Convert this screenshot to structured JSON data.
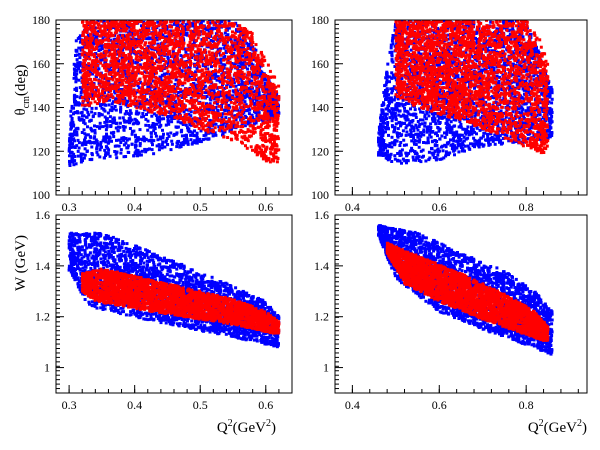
{
  "chart_data": [
    {
      "type": "scatter",
      "panel": "top-left",
      "xlim": [
        0.28,
        0.64
      ],
      "ylim": [
        100,
        180
      ],
      "xticks": [
        0.3,
        0.4,
        0.5,
        0.6
      ],
      "xtick_labels": [
        "0.3",
        "0.4",
        "0.5",
        "0.6"
      ],
      "yticks": [
        100,
        120,
        140,
        160,
        180
      ],
      "ytick_labels": [
        "100",
        "120",
        "140",
        "160",
        "180"
      ],
      "ylabel": {
        "main": "θ",
        "sub": "cm",
        "tail": "(deg)"
      },
      "series": [
        {
          "name": "blue",
          "color": "#0000ff",
          "region": {
            "x": [
              0.3,
              0.62
            ],
            "y_lower": [
              [
                0.3,
                113
              ],
              [
                0.33,
                116
              ],
              [
                0.42,
                118
              ],
              [
                0.5,
                124
              ],
              [
                0.56,
                130
              ],
              [
                0.62,
                136
              ]
            ],
            "y_upper": [
              [
                0.3,
                128
              ],
              [
                0.31,
                170
              ],
              [
                0.33,
                180
              ],
              [
                0.55,
                180
              ],
              [
                0.58,
                170
              ],
              [
                0.6,
                155
              ],
              [
                0.62,
                145
              ]
            ]
          }
        },
        {
          "name": "red",
          "color": "#ff0000",
          "region": {
            "x": [
              0.32,
              0.62
            ],
            "y_lower": [
              [
                0.32,
                140
              ],
              [
                0.36,
                143
              ],
              [
                0.45,
                136
              ],
              [
                0.5,
                130
              ],
              [
                0.56,
                124
              ],
              [
                0.6,
                115
              ],
              [
                0.62,
                115
              ]
            ],
            "y_upper": [
              [
                0.32,
                180
              ],
              [
                0.55,
                180
              ],
              [
                0.58,
                174
              ],
              [
                0.6,
                162
              ],
              [
                0.62,
                150
              ]
            ]
          }
        }
      ]
    },
    {
      "type": "scatter",
      "panel": "top-right",
      "xlim": [
        0.36,
        0.94
      ],
      "ylim": [
        100,
        180
      ],
      "xticks": [
        0.4,
        0.6,
        0.8
      ],
      "xtick_labels": [
        "0.4",
        "0.6",
        "0.8"
      ],
      "yticks": [
        100,
        120,
        140,
        160,
        180
      ],
      "ytick_labels": [
        "100",
        "120",
        "140",
        "160",
        "180"
      ],
      "series": [
        {
          "name": "blue",
          "color": "#0000ff",
          "region": {
            "x": [
              0.46,
              0.86
            ],
            "y_lower": [
              [
                0.46,
                118
              ],
              [
                0.5,
                114
              ],
              [
                0.6,
                116
              ],
              [
                0.7,
                122
              ],
              [
                0.8,
                124
              ],
              [
                0.86,
                126
              ]
            ],
            "y_upper": [
              [
                0.46,
                128
              ],
              [
                0.48,
                160
              ],
              [
                0.5,
                180
              ],
              [
                0.8,
                180
              ],
              [
                0.83,
                165
              ],
              [
                0.86,
                148
              ]
            ]
          }
        },
        {
          "name": "red",
          "color": "#ff0000",
          "region": {
            "x": [
              0.5,
              0.85
            ],
            "y_lower": [
              [
                0.5,
                145
              ],
              [
                0.55,
                140
              ],
              [
                0.65,
                134
              ],
              [
                0.75,
                126
              ],
              [
                0.85,
                118
              ]
            ],
            "y_upper": [
              [
                0.5,
                180
              ],
              [
                0.8,
                180
              ],
              [
                0.83,
                172
              ],
              [
                0.85,
                160
              ]
            ]
          }
        }
      ]
    },
    {
      "type": "scatter",
      "panel": "bottom-left",
      "xlim": [
        0.28,
        0.64
      ],
      "ylim": [
        0.9,
        1.6
      ],
      "xticks": [
        0.3,
        0.4,
        0.5,
        0.6
      ],
      "xtick_labels": [
        "0.3",
        "0.4",
        "0.5",
        "0.6"
      ],
      "yticks": [
        1.0,
        1.2,
        1.4,
        1.6
      ],
      "ytick_labels": [
        "1",
        "1.2",
        "1.4",
        "1.6"
      ],
      "ylabel": {
        "main": "W (GeV)"
      },
      "xlabel": {
        "main": "Q",
        "sup": "2",
        "mid": "(GeV",
        "sup2": "2",
        "tail": ")"
      },
      "series": [
        {
          "name": "blue",
          "color": "#0000ff",
          "region": {
            "x": [
              0.3,
              0.62
            ],
            "y_lower": [
              [
                0.3,
                1.38
              ],
              [
                0.33,
                1.24
              ],
              [
                0.45,
                1.17
              ],
              [
                0.55,
                1.12
              ],
              [
                0.62,
                1.08
              ]
            ],
            "y_upper": [
              [
                0.3,
                1.53
              ],
              [
                0.35,
                1.53
              ],
              [
                0.45,
                1.43
              ],
              [
                0.55,
                1.32
              ],
              [
                0.6,
                1.26
              ],
              [
                0.62,
                1.2
              ]
            ]
          }
        },
        {
          "name": "red",
          "color": "#ff0000",
          "region": {
            "x": [
              0.32,
              0.62
            ],
            "y_lower": [
              [
                0.32,
                1.3
              ],
              [
                0.34,
                1.26
              ],
              [
                0.45,
                1.21
              ],
              [
                0.55,
                1.17
              ],
              [
                0.62,
                1.13
              ]
            ],
            "y_upper": [
              [
                0.32,
                1.37
              ],
              [
                0.35,
                1.39
              ],
              [
                0.45,
                1.33
              ],
              [
                0.55,
                1.27
              ],
              [
                0.6,
                1.22
              ],
              [
                0.62,
                1.18
              ]
            ]
          }
        }
      ]
    },
    {
      "type": "scatter",
      "panel": "bottom-right",
      "xlim": [
        0.36,
        0.94
      ],
      "ylim": [
        0.9,
        1.6
      ],
      "xticks": [
        0.4,
        0.6,
        0.8
      ],
      "xtick_labels": [
        "0.4",
        "0.6",
        "0.8"
      ],
      "yticks": [
        1.0,
        1.2,
        1.4,
        1.6
      ],
      "ytick_labels": [
        "1",
        "1.2",
        "1.4",
        "1.6"
      ],
      "xlabel": {
        "main": "Q",
        "sup": "2",
        "mid": "(GeV",
        "sup2": "2",
        "tail": ")"
      },
      "series": [
        {
          "name": "blue",
          "color": "#0000ff",
          "region": {
            "x": [
              0.46,
              0.86
            ],
            "y_lower": [
              [
                0.46,
                1.52
              ],
              [
                0.5,
                1.35
              ],
              [
                0.6,
                1.22
              ],
              [
                0.7,
                1.15
              ],
              [
                0.8,
                1.09
              ],
              [
                0.86,
                1.05
              ]
            ],
            "y_upper": [
              [
                0.46,
                1.56
              ],
              [
                0.55,
                1.53
              ],
              [
                0.65,
                1.45
              ],
              [
                0.75,
                1.38
              ],
              [
                0.82,
                1.3
              ],
              [
                0.86,
                1.22
              ]
            ]
          }
        },
        {
          "name": "red",
          "color": "#ff0000",
          "region": {
            "x": [
              0.48,
              0.85
            ],
            "y_lower": [
              [
                0.48,
                1.45
              ],
              [
                0.52,
                1.33
              ],
              [
                0.6,
                1.26
              ],
              [
                0.7,
                1.19
              ],
              [
                0.8,
                1.13
              ],
              [
                0.85,
                1.1
              ]
            ],
            "y_upper": [
              [
                0.48,
                1.49
              ],
              [
                0.55,
                1.44
              ],
              [
                0.65,
                1.37
              ],
              [
                0.75,
                1.29
              ],
              [
                0.82,
                1.22
              ],
              [
                0.85,
                1.16
              ]
            ]
          }
        }
      ]
    }
  ]
}
